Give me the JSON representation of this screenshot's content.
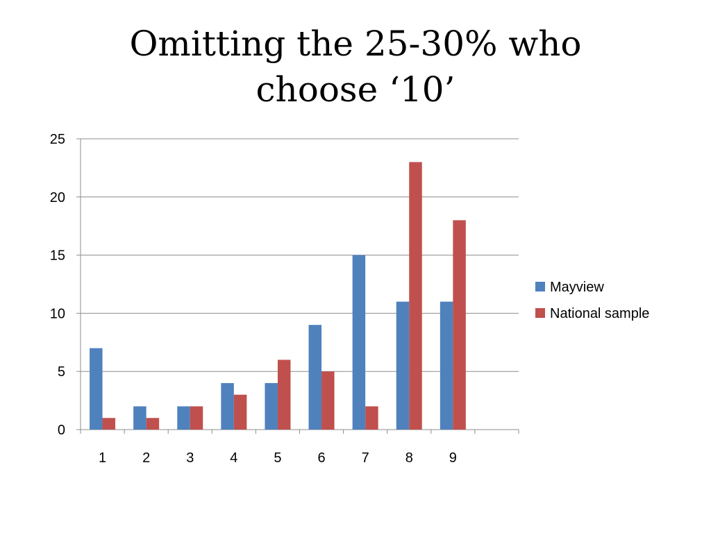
{
  "slide": {
    "title_line1": "Omitting the 25-30% who",
    "title_line2": "choose ‘10’"
  },
  "chart_data": {
    "type": "bar",
    "categories": [
      "1",
      "2",
      "3",
      "4",
      "5",
      "6",
      "7",
      "8",
      "9",
      ""
    ],
    "series": [
      {
        "name": "Mayview",
        "color": "#4F81BD",
        "values": [
          7,
          2,
          2,
          4,
          4,
          9,
          15,
          11,
          11,
          null
        ]
      },
      {
        "name": "National sample",
        "color": "#C0504D",
        "values": [
          1,
          1,
          2,
          3,
          6,
          5,
          2,
          23,
          18,
          null
        ]
      }
    ],
    "ylim": [
      0,
      25
    ],
    "yticks": [
      "0",
      "5",
      "10",
      "15",
      "20",
      "25"
    ],
    "grid": true,
    "legend": "right"
  }
}
